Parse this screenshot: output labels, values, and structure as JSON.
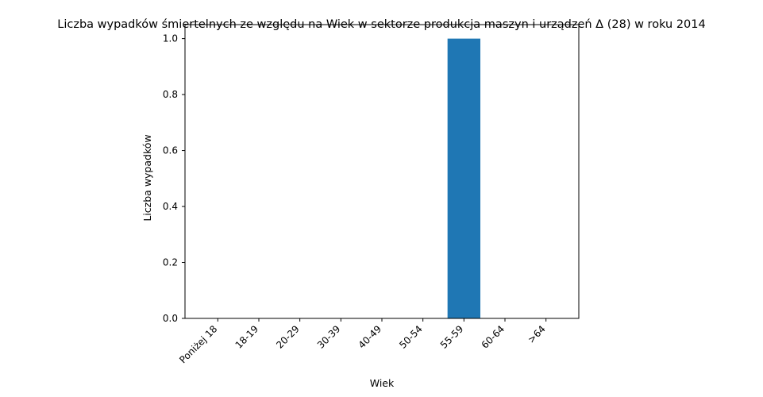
{
  "chart_data": {
    "type": "bar",
    "title": "Liczba wypadków śmiertelnych ze względu na Wiek w sektorze produkcja maszyn i urządzeń Δ (28) w roku 2014",
    "xlabel": "Wiek",
    "ylabel": "Liczba wypadków",
    "categories": [
      "Poniżej 18",
      "18-19",
      "20-29",
      "30-39",
      "40-49",
      "50-54",
      "55-59",
      "60-64",
      ">64"
    ],
    "values": [
      0,
      0,
      0,
      0,
      0,
      0,
      1,
      0,
      0
    ],
    "ylim": [
      0,
      1.05
    ],
    "yticks": [
      "0.0",
      "0.2",
      "0.4",
      "0.6",
      "0.8",
      "1.0"
    ],
    "grid": false,
    "legend": "none",
    "bar_color": "#1f77b4"
  }
}
